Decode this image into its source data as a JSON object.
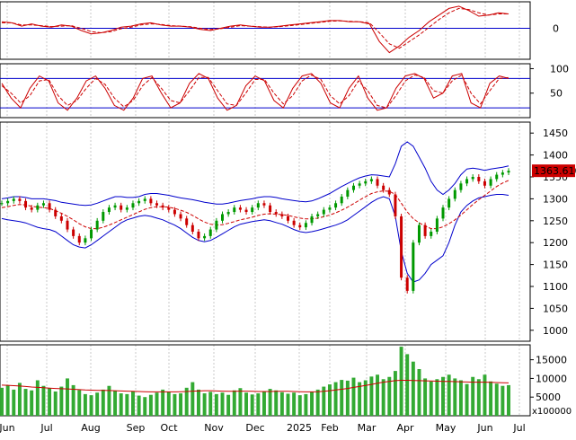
{
  "chart_data": {
    "type": "line",
    "x_month_labels": [
      "Jun",
      "Jul",
      "Aug",
      "Sep",
      "Oct",
      "Nov",
      "Dec",
      "2025",
      "Feb",
      "Mar",
      "Apr",
      "May",
      "Jun",
      "Jul"
    ],
    "panels": [
      {
        "name": "momentum",
        "y_ticks": [
          "0"
        ],
        "reference_levels": [
          0
        ],
        "series": [
          {
            "values": [
              0.3,
              0.25,
              0.1,
              0.2,
              0.1,
              0.05,
              0.15,
              0.1,
              -0.1,
              -0.25,
              -0.2,
              -0.1,
              0.05,
              0.1,
              0.2,
              0.25,
              0.15,
              0.1,
              0.1,
              0.05,
              -0.05,
              -0.1,
              0.0,
              0.1,
              0.15,
              0.1,
              0.05,
              0.05,
              0.1,
              0.15,
              0.2,
              0.25,
              0.3,
              0.35,
              0.35,
              0.3,
              0.3,
              0.2,
              -0.6,
              -1.1,
              -0.8,
              -0.4,
              -0.1,
              0.3,
              0.6,
              0.9,
              1.0,
              0.8,
              0.55,
              0.6,
              0.7,
              0.65
            ],
            "color": "#cc0000"
          },
          {
            "values": [
              0.25,
              0.25,
              0.15,
              0.15,
              0.12,
              0.08,
              0.1,
              0.12,
              0.0,
              -0.15,
              -0.2,
              -0.15,
              -0.02,
              0.05,
              0.15,
              0.2,
              0.18,
              0.12,
              0.1,
              0.07,
              0.0,
              -0.05,
              -0.02,
              0.05,
              0.12,
              0.1,
              0.07,
              0.05,
              0.08,
              0.12,
              0.17,
              0.22,
              0.27,
              0.32,
              0.34,
              0.32,
              0.3,
              0.25,
              -0.2,
              -0.7,
              -0.9,
              -0.6,
              -0.3,
              0.05,
              0.4,
              0.7,
              0.9,
              0.85,
              0.7,
              0.6,
              0.65,
              0.65
            ],
            "color": "#cc0000",
            "dashed": true
          }
        ]
      },
      {
        "name": "oscillator",
        "y_ticks": [
          "100",
          "50"
        ],
        "reference_levels": [
          80,
          20
        ],
        "series": [
          {
            "values": [
              70,
              40,
              20,
              60,
              85,
              75,
              30,
              15,
              40,
              75,
              85,
              60,
              25,
              15,
              40,
              80,
              85,
              50,
              20,
              30,
              70,
              90,
              80,
              40,
              15,
              25,
              65,
              85,
              75,
              35,
              20,
              60,
              85,
              90,
              70,
              30,
              20,
              60,
              85,
              40,
              15,
              20,
              60,
              85,
              90,
              80,
              40,
              50,
              85,
              90,
              30,
              20,
              70,
              85,
              80
            ],
            "color": "#cc0000"
          },
          {
            "values": [
              65,
              50,
              30,
              45,
              75,
              78,
              45,
              25,
              35,
              60,
              80,
              68,
              40,
              22,
              35,
              65,
              82,
              60,
              35,
              30,
              55,
              82,
              82,
              55,
              28,
              25,
              50,
              78,
              78,
              50,
              28,
              45,
              75,
              87,
              78,
              45,
              28,
              45,
              75,
              55,
              25,
              20,
              45,
              75,
              87,
              82,
              55,
              50,
              75,
              87,
              50,
              28,
              55,
              80,
              82
            ],
            "color": "#cc0000",
            "dashed": true
          }
        ]
      },
      {
        "name": "price",
        "y_ticks": [
          "1450",
          "1400",
          "1350",
          "1300",
          "1250",
          "1200",
          "1150",
          "1100",
          "1050",
          "1000"
        ],
        "ylim": [
          975,
          1475
        ],
        "current_value_label": "1363.610",
        "close": [
          1290,
          1295,
          1300,
          1295,
          1280,
          1275,
          1285,
          1290,
          1275,
          1260,
          1250,
          1230,
          1215,
          1200,
          1210,
          1230,
          1250,
          1270,
          1280,
          1285,
          1275,
          1280,
          1290,
          1295,
          1300,
          1290,
          1285,
          1280,
          1275,
          1265,
          1255,
          1240,
          1225,
          1210,
          1215,
          1230,
          1250,
          1265,
          1270,
          1280,
          1275,
          1270,
          1280,
          1290,
          1285,
          1270,
          1265,
          1260,
          1250,
          1240,
          1235,
          1245,
          1260,
          1265,
          1275,
          1280,
          1290,
          1305,
          1320,
          1330,
          1335,
          1340,
          1345,
          1330,
          1320,
          1310,
          1260,
          1120,
          1090,
          1200,
          1240,
          1215,
          1225,
          1255,
          1280,
          1300,
          1320,
          1335,
          1345,
          1350,
          1340,
          1330,
          1345,
          1355,
          1360,
          1364
        ],
        "ma": [
          1280,
          1282,
          1285,
          1287,
          1286,
          1283,
          1281,
          1280,
          1278,
          1273,
          1267,
          1260,
          1252,
          1243,
          1236,
          1232,
          1232,
          1235,
          1240,
          1246,
          1252,
          1258,
          1264,
          1270,
          1276,
          1280,
          1282,
          1282,
          1281,
          1278,
          1274,
          1269,
          1262,
          1254,
          1247,
          1242,
          1240,
          1241,
          1244,
          1248,
          1252,
          1255,
          1258,
          1262,
          1265,
          1266,
          1265,
          1264,
          1262,
          1259,
          1256,
          1254,
          1254,
          1256,
          1259,
          1263,
          1268,
          1274,
          1281,
          1289,
          1297,
          1305,
          1312,
          1316,
          1318,
          1317,
          1310,
          1290,
          1270,
          1255,
          1245,
          1238,
          1232,
          1232,
          1236,
          1243,
          1252,
          1263,
          1275,
          1287,
          1298,
          1308,
          1318,
          1328,
          1336,
          1342
        ],
        "upper_band": [
          1300,
          1302,
          1305,
          1305,
          1303,
          1300,
          1300,
          1300,
          1298,
          1296,
          1292,
          1290,
          1288,
          1286,
          1285,
          1286,
          1290,
          1295,
          1300,
          1305,
          1305,
          1303,
          1303,
          1305,
          1310,
          1312,
          1312,
          1310,
          1308,
          1305,
          1302,
          1300,
          1298,
          1295,
          1292,
          1290,
          1288,
          1288,
          1290,
          1293,
          1296,
          1298,
          1300,
          1303,
          1305,
          1305,
          1303,
          1300,
          1298,
          1296,
          1294,
          1293,
          1295,
          1300,
          1306,
          1312,
          1320,
          1328,
          1335,
          1342,
          1348,
          1352,
          1355,
          1354,
          1352,
          1350,
          1380,
          1420,
          1430,
          1420,
          1395,
          1370,
          1340,
          1320,
          1310,
          1320,
          1335,
          1355,
          1368,
          1370,
          1368,
          1365,
          1368,
          1370,
          1372,
          1375
        ],
        "lower_band": [
          1255,
          1252,
          1250,
          1248,
          1245,
          1240,
          1235,
          1232,
          1230,
          1225,
          1215,
          1205,
          1195,
          1190,
          1188,
          1195,
          1205,
          1215,
          1225,
          1235,
          1245,
          1252,
          1256,
          1260,
          1262,
          1260,
          1256,
          1252,
          1246,
          1240,
          1232,
          1222,
          1212,
          1205,
          1202,
          1205,
          1212,
          1220,
          1228,
          1236,
          1242,
          1245,
          1248,
          1250,
          1252,
          1250,
          1246,
          1242,
          1236,
          1230,
          1225,
          1223,
          1225,
          1228,
          1232,
          1236,
          1240,
          1245,
          1252,
          1262,
          1272,
          1282,
          1292,
          1300,
          1305,
          1300,
          1260,
          1180,
          1130,
          1110,
          1115,
          1130,
          1150,
          1160,
          1170,
          1200,
          1240,
          1270,
          1285,
          1295,
          1302,
          1305,
          1308,
          1310,
          1310,
          1308
        ]
      },
      {
        "name": "volume",
        "y_ticks": [
          "15000",
          "10000",
          "5000"
        ],
        "unit_label": "x100000",
        "ylim": [
          0,
          19000
        ],
        "values": [
          7500,
          8200,
          7000,
          8800,
          7200,
          6800,
          9500,
          8000,
          7400,
          6500,
          7800,
          10000,
          8200,
          6900,
          5800,
          5500,
          6200,
          7000,
          8000,
          6700,
          6000,
          5800,
          6600,
          5400,
          5000,
          5600,
          6200,
          7000,
          6500,
          5800,
          6000,
          7500,
          9000,
          7000,
          6000,
          6400,
          5800,
          6200,
          5600,
          6800,
          7400,
          6200,
          5700,
          6000,
          6600,
          7200,
          6800,
          6300,
          5900,
          6200,
          5500,
          5800,
          6400,
          7000,
          7800,
          8400,
          9000,
          9600,
          9400,
          10200,
          9000,
          9500,
          10500,
          11000,
          9800,
          10400,
          12000,
          18500,
          16500,
          14500,
          12500,
          10000,
          9200,
          9800,
          10400,
          11000,
          10000,
          9500,
          8500,
          10400,
          9800,
          11000,
          9200,
          8600,
          8000,
          8200
        ],
        "ma": [
          8200,
          8150,
          8050,
          7950,
          7850,
          7700,
          7600,
          7500,
          7400,
          7300,
          7250,
          7200,
          7100,
          7000,
          6900,
          6850,
          6800,
          6800,
          6750,
          6700,
          6650,
          6600,
          6550,
          6500,
          6450,
          6400,
          6400,
          6400,
          6400,
          6400,
          6450,
          6500,
          6600,
          6650,
          6700,
          6700,
          6650,
          6600,
          6550,
          6550,
          6600,
          6600,
          6550,
          6500,
          6500,
          6500,
          6550,
          6550,
          6550,
          6500,
          6450,
          6400,
          6400,
          6450,
          6550,
          6700,
          6900,
          7100,
          7300,
          7600,
          7850,
          8100,
          8400,
          8700,
          9000,
          9200,
          9400,
          9500,
          9500,
          9450,
          9400,
          9350,
          9300,
          9250,
          9200,
          9200,
          9150,
          9100,
          9050,
          9000,
          9000,
          9000,
          8950,
          8900,
          8850,
          8800
        ]
      }
    ],
    "colors": {
      "price_up": "#009900",
      "price_down": "#cc0000",
      "bands": "#0000cc",
      "ma": "#cc0000",
      "volume_bars": "#33aa33",
      "reference_lines": "#0000cc",
      "grid": "#bbbbbb",
      "value_box": "#cc0000"
    }
  }
}
